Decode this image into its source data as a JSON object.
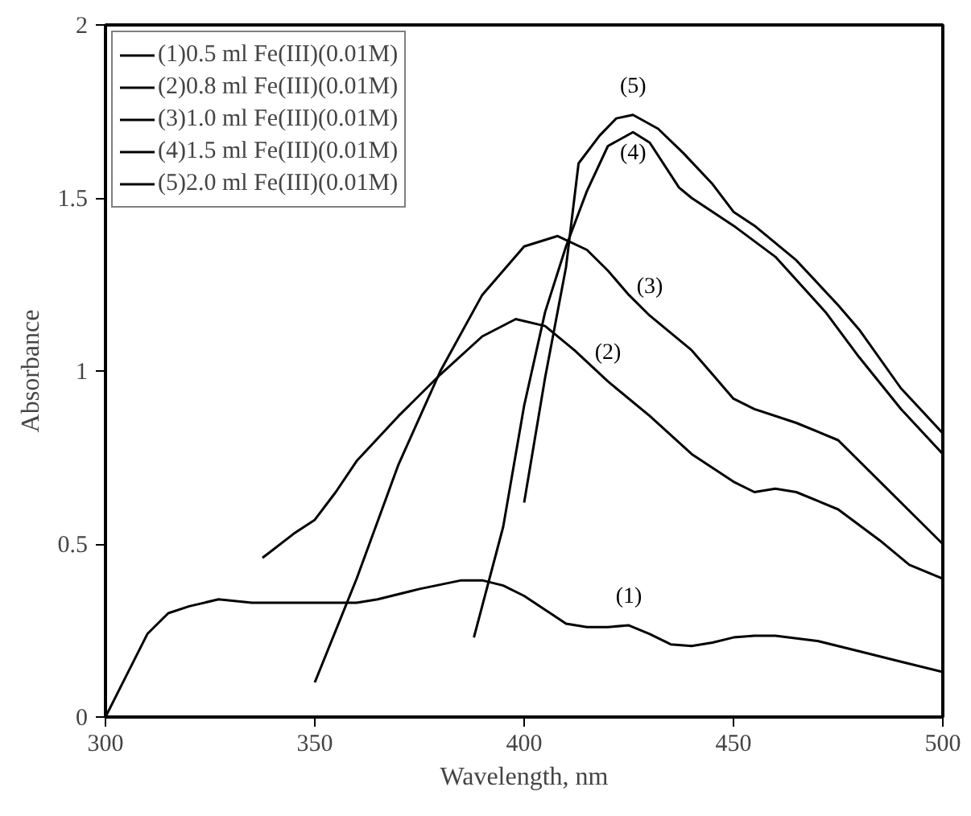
{
  "chart_data": {
    "type": "line",
    "xlabel": "Wavelength, nm",
    "ylabel": "Absorbance",
    "xlim": [
      300,
      500
    ],
    "ylim": [
      0,
      2
    ],
    "xticks": [
      300,
      350,
      400,
      450,
      500
    ],
    "yticks": [
      0,
      0.5,
      1,
      1.5,
      2
    ],
    "grid": false,
    "legend": "top left",
    "marker": "none",
    "line_style": "solid",
    "series": [
      {
        "name": "(1)0.5 ml Fe(III)(0.01M)",
        "color": "#000000",
        "x": [
          300,
          305,
          310,
          315,
          320,
          327,
          335,
          350,
          360,
          365,
          375,
          385,
          390,
          395,
          400,
          405,
          410,
          415,
          420,
          425,
          430,
          435,
          440,
          445,
          450,
          455,
          460,
          470,
          480,
          490,
          500
        ],
        "values": [
          0,
          0.12,
          0.24,
          0.3,
          0.32,
          0.34,
          0.33,
          0.33,
          0.33,
          0.34,
          0.37,
          0.395,
          0.395,
          0.38,
          0.35,
          0.31,
          0.27,
          0.26,
          0.26,
          0.265,
          0.24,
          0.21,
          0.205,
          0.215,
          0.23,
          0.235,
          0.235,
          0.22,
          0.19,
          0.16,
          0.13
        ]
      },
      {
        "name": "(2)0.8 ml Fe(III)(0.01M)",
        "color": "#000000",
        "x": [
          337.5,
          345,
          350,
          355,
          360,
          370,
          380,
          390,
          398,
          405,
          412,
          420,
          430,
          440,
          450,
          455,
          460,
          465,
          475,
          485,
          492,
          500
        ],
        "values": [
          0.46,
          0.53,
          0.57,
          0.65,
          0.74,
          0.87,
          0.99,
          1.1,
          1.15,
          1.13,
          1.06,
          0.97,
          0.87,
          0.76,
          0.68,
          0.65,
          0.66,
          0.65,
          0.6,
          0.51,
          0.44,
          0.4
        ]
      },
      {
        "name": "(3)1.0 ml Fe(III)(0.01M)",
        "color": "#000000",
        "x": [
          350,
          360,
          370,
          380,
          390,
          400,
          408,
          415,
          420,
          425,
          430,
          440,
          445,
          450,
          455,
          465,
          475,
          485,
          495,
          500
        ],
        "values": [
          0.1,
          0.4,
          0.73,
          1.0,
          1.22,
          1.36,
          1.39,
          1.35,
          1.29,
          1.22,
          1.16,
          1.06,
          0.99,
          0.92,
          0.89,
          0.85,
          0.8,
          0.68,
          0.56,
          0.5
        ]
      },
      {
        "name": "(4)1.5 ml Fe(III)(0.01M)",
        "color": "#000000",
        "x": [
          388,
          395,
          400,
          405,
          410,
          415,
          420,
          426,
          430,
          437,
          440,
          450,
          460,
          472,
          480,
          490,
          500
        ],
        "values": [
          0.23,
          0.55,
          0.9,
          1.17,
          1.36,
          1.52,
          1.65,
          1.69,
          1.66,
          1.53,
          1.5,
          1.42,
          1.33,
          1.17,
          1.04,
          0.89,
          0.76
        ]
      },
      {
        "name": "(5)2.0 ml Fe(III)(0.01M)",
        "color": "#000000",
        "x": [
          400,
          405,
          410,
          413,
          418,
          422,
          426,
          432,
          438,
          445,
          450,
          455,
          465,
          475,
          480,
          490,
          500
        ],
        "values": [
          0.62,
          0.98,
          1.3,
          1.6,
          1.68,
          1.73,
          1.74,
          1.7,
          1.63,
          1.54,
          1.46,
          1.42,
          1.32,
          1.19,
          1.12,
          0.95,
          0.82
        ]
      }
    ],
    "annotations": [
      {
        "text": "(5)",
        "x": 426,
        "y": 1.74
      },
      {
        "text": "(4)",
        "x": 426,
        "y": 1.69
      },
      {
        "text": "(3)",
        "x": 430,
        "y": 1.16
      },
      {
        "text": "(2)",
        "x": 420,
        "y": 0.97
      },
      {
        "text": "(1)",
        "x": 425,
        "y": 0.265
      }
    ]
  }
}
